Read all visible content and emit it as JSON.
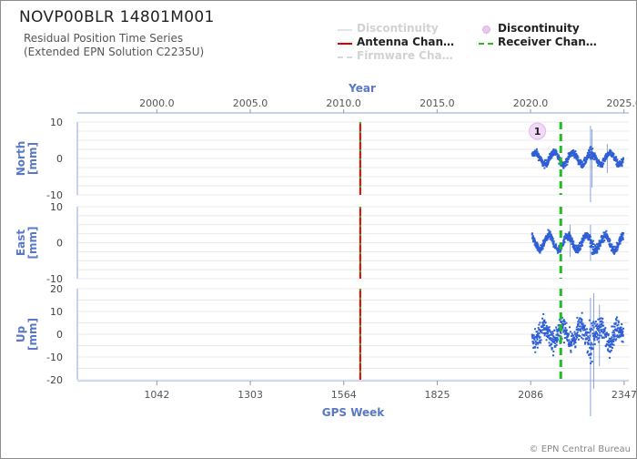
{
  "header": {
    "station": "NOVP00BLR 14801M001",
    "subtitle_line1": "Residual Position Time Series",
    "subtitle_line2": "(Extended EPN Solution C2235U)"
  },
  "legend": [
    {
      "label": "Discontinuity",
      "style": "line",
      "color": "#e4e4e4",
      "dash": false,
      "dim": true
    },
    {
      "label": "Antenna Chan…",
      "style": "line",
      "color": "#dd0000",
      "dash": false,
      "dim": false
    },
    {
      "label": "Firmware Cha…",
      "style": "line",
      "color": "#d8d8d8",
      "dash": true,
      "dim": true
    },
    {
      "label": "Discontinuity",
      "style": "dot",
      "color": "#e8c8f0",
      "dash": false,
      "dim": false
    },
    {
      "label": "Receiver Chan…",
      "style": "line",
      "color": "#22bb22",
      "dash": true,
      "dim": false
    }
  ],
  "credit": "© EPN Central Bureau",
  "chart_data": {
    "type": "scatter",
    "top_axis": {
      "label": "Year",
      "ticks": [
        "2000.0",
        "2005.0",
        "2010.0",
        "2015.0",
        "2020.0",
        "2025.0"
      ],
      "tick_values": [
        2000.0,
        2005.0,
        2010.0,
        2015.0,
        2020.0,
        2025.0
      ]
    },
    "bottom_axis": {
      "label": "GPS Week",
      "ticks": [
        "1042",
        "1303",
        "1564",
        "1825",
        "2086",
        "2347"
      ],
      "tick_values": [
        1042,
        1303,
        1564,
        1825,
        2086,
        2347
      ]
    },
    "xlim": [
      820,
      2360
    ],
    "grid": true,
    "data_span_gps_week": [
      2090,
      2345
    ],
    "antenna_change_gps_week": 1610,
    "receiver_change_gps_week": 2170,
    "discontinuity_marker": {
      "label": "1",
      "gps_week": 2092
    },
    "panels": [
      {
        "name": "North",
        "ylabel": "North\n[mm]",
        "ylim": [
          -10,
          10
        ],
        "yticks": [
          -10,
          0,
          10
        ],
        "amplitude": 1.6,
        "noise": 0.7,
        "spikes": [
          {
            "gps_week": 2253,
            "low": -12,
            "high": 9
          },
          {
            "gps_week": 2257,
            "low": -8,
            "high": 8
          },
          {
            "gps_week": 2300,
            "low": -4,
            "high": 4
          }
        ]
      },
      {
        "name": "East",
        "ylabel": "East\n[mm]",
        "ylim": [
          -10,
          10
        ],
        "yticks": [
          -10,
          0,
          10
        ],
        "amplitude": 2.0,
        "noise": 0.8,
        "spikes": [
          {
            "gps_week": 2196,
            "low": -4,
            "high": 5
          },
          {
            "gps_week": 2253,
            "low": -5,
            "high": 5
          }
        ]
      },
      {
        "name": "Up",
        "ylabel": "Up\n[mm]",
        "ylim": [
          -20,
          20
        ],
        "yticks": [
          -20,
          -10,
          0,
          10,
          20
        ],
        "amplitude": 3.0,
        "noise": 3.5,
        "spikes": [
          {
            "gps_week": 2253,
            "low": -36,
            "high": 16
          },
          {
            "gps_week": 2262,
            "low": -24,
            "high": 18
          },
          {
            "gps_week": 2278,
            "low": -14,
            "high": 13
          }
        ]
      }
    ]
  }
}
